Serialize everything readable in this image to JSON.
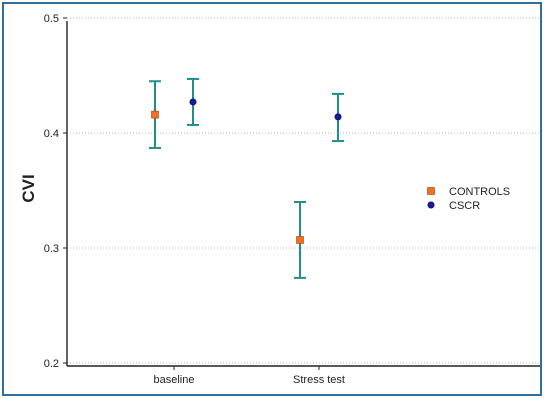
{
  "chart_data": {
    "type": "scatter",
    "title": "",
    "xlabel": "",
    "ylabel": "CVI",
    "categories": [
      "baseline",
      "Stress test"
    ],
    "ylim": [
      0.2,
      0.5
    ],
    "yticks": [
      "0.2",
      "0.3",
      "0.4",
      "0.5"
    ],
    "grid": "horizontal-dotted",
    "legend_position": "right",
    "errorbar_color": "#1f8f8a",
    "series": [
      {
        "name": "CONTROLS",
        "marker": "square",
        "color": "#f07020",
        "values": [
          0.416,
          0.307
        ],
        "lower": [
          0.387,
          0.274
        ],
        "upper": [
          0.445,
          0.34
        ]
      },
      {
        "name": "CSCR",
        "marker": "circle",
        "color": "#1a1aa0",
        "values": [
          0.427,
          0.414
        ],
        "lower": [
          0.407,
          0.393
        ],
        "upper": [
          0.447,
          0.434
        ]
      }
    ]
  }
}
